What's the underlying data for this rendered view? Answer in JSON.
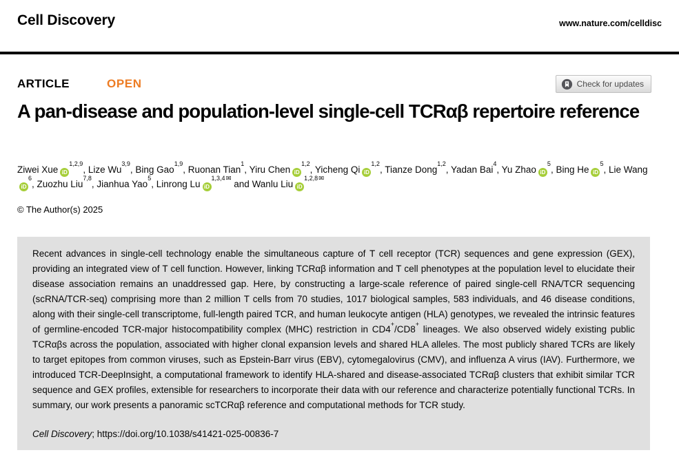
{
  "header": {
    "journal": "Cell Discovery",
    "site_url": "www.nature.com/celldisc"
  },
  "article": {
    "type_label": "ARTICLE",
    "open_label": "OPEN",
    "check_updates_label": "Check for updates",
    "title": "A pan-disease and population-level single-cell TCRαβ repertoire reference",
    "copyright": "© The Author(s) 2025"
  },
  "authors": [
    {
      "name": "Ziwei Xue",
      "orcid": true,
      "sup": "1,2,9"
    },
    {
      "name": "Lize Wu",
      "orcid": false,
      "sup": "3,9"
    },
    {
      "name": "Bing Gao",
      "orcid": false,
      "sup": "1,9"
    },
    {
      "name": "Ruonan Tian",
      "orcid": false,
      "sup": "1"
    },
    {
      "name": "Yiru Chen",
      "orcid": true,
      "sup": "1,2"
    },
    {
      "name": "Yicheng Qi",
      "orcid": true,
      "sup": "1,2"
    },
    {
      "name": "Tianze Dong",
      "orcid": false,
      "sup": "1,2"
    },
    {
      "name": "Yadan Bai",
      "orcid": false,
      "sup": "4"
    },
    {
      "name": "Yu Zhao",
      "orcid": true,
      "sup": "5"
    },
    {
      "name": "Bing He",
      "orcid": true,
      "sup": "5"
    },
    {
      "name": "Lie Wang",
      "orcid": true,
      "sup": "6"
    },
    {
      "name": "Zuozhu Liu",
      "orcid": false,
      "sup": "7,8"
    },
    {
      "name": "Jianhua Yao",
      "orcid": false,
      "sup": "5"
    },
    {
      "name": "Linrong Lu",
      "orcid": true,
      "sup": "1,3,4",
      "email": true
    },
    {
      "name": "Wanlu Liu",
      "orcid": true,
      "sup": "1,2,8",
      "email": true
    }
  ],
  "abstract": {
    "segments": [
      {
        "text": "Recent advances in single-cell technology enable the simultaneous capture of T cell receptor (TCR) sequences and gene expression (GEX), providing an integrated view of T cell function. However, linking TCRαβ information and T cell phenotypes at the population level to elucidate their disease association remains an unaddressed gap. Here, by constructing a large-scale reference of paired single-cell RNA/TCR sequencing (scRNA/TCR-seq) comprising more than 2 million T cells from 70 studies, 1017 biological samples, 583 individuals, and 46 disease conditions, along with their single-cell transcriptome, full-length paired TCR, and human leukocyte antigen (HLA) genotypes, we revealed the intrinsic features of germline-encoded TCR-major histocompatibility complex (MHC) restriction in CD4"
      },
      {
        "text": "+",
        "sup": true
      },
      {
        "text": "/CD8"
      },
      {
        "text": "+",
        "sup": true
      },
      {
        "text": " lineages. We also observed widely existing public TCRαβs across the population, associated with higher clonal expansion levels and shared HLA alleles. The most publicly shared TCRs are likely to target epitopes from common viruses, such as Epstein-Barr virus (EBV), cytomegalovirus (CMV), and influenza A virus (IAV). Furthermore, we introduced TCR-DeepInsight, a computational framework to identify HLA-shared and disease-associated TCRαβ clusters that exhibit similar TCR sequence and GEX profiles, extensible for researchers to incorporate their data with our reference and characterize potentially functional TCRs. In summary, our work presents a panoramic scTCRαβ reference and computational methods for TCR study."
      }
    ]
  },
  "citation": {
    "segments": [
      {
        "text": "Cell Discovery",
        "italic": true
      },
      {
        "text": "; ",
        "plain": true
      },
      {
        "text": "https://doi.org/10.1038/s41421-025-00836-7",
        "link": true
      }
    ]
  },
  "colors": {
    "open_accent": "#ED7C23",
    "orcid_green": "#A6CE39",
    "abstract_background": "#E0E0E0",
    "rule_black": "#000000"
  }
}
